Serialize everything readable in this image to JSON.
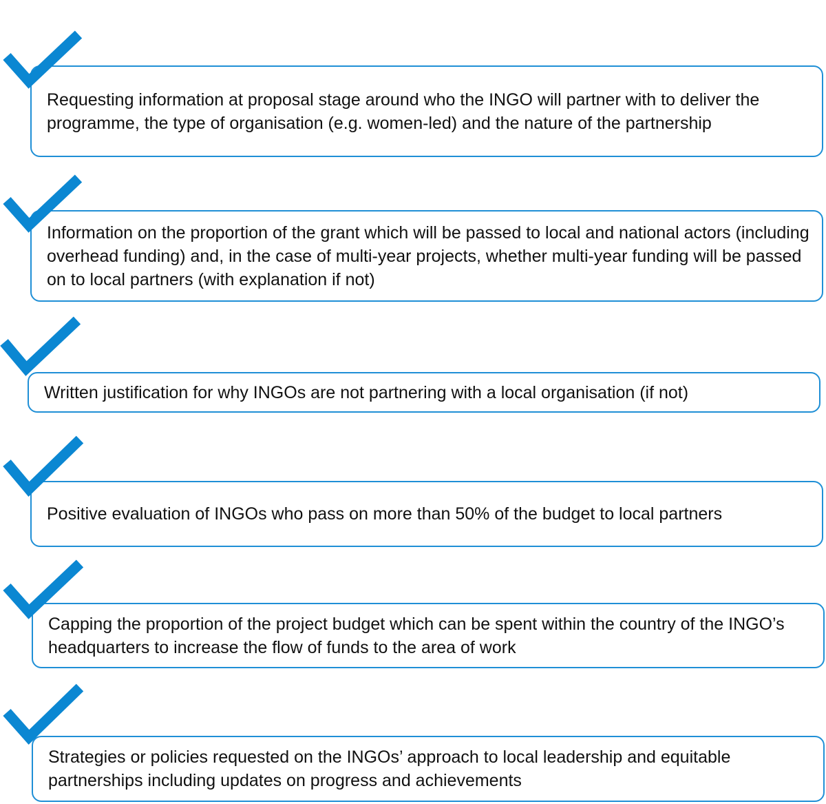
{
  "check_color": "#0b87d2",
  "box_border_color": "#1f8fd6",
  "items": [
    {
      "text": "Requesting information at proposal stage around who the INGO will partner with to deliver the programme, the type of organisation (e.g. women-led) and the nature of the partnership",
      "icon": "checkmark-icon"
    },
    {
      "text": "Information on the proportion of the grant which will be passed to local and national actors (including overhead funding) and, in the case of multi-year projects, whether multi-year funding will be passed on to local partners (with explanation if not)",
      "icon": "checkmark-icon"
    },
    {
      "text": "Written justification for why INGOs are not partnering with a local organisation (if not)",
      "icon": "checkmark-icon"
    },
    {
      "text": "Positive evaluation of INGOs who pass on more than 50% of the budget to local partners",
      "icon": "checkmark-icon"
    },
    {
      "text": "Capping the proportion of the project budget which can be spent within the country of the INGO’s headquarters to increase the flow of funds to the area of work",
      "icon": "checkmark-icon"
    },
    {
      "text": "Strategies or policies requested on the INGOs’ approach to local leadership and equitable partnerships including updates on progress and achievements",
      "icon": "checkmark-icon"
    }
  ]
}
